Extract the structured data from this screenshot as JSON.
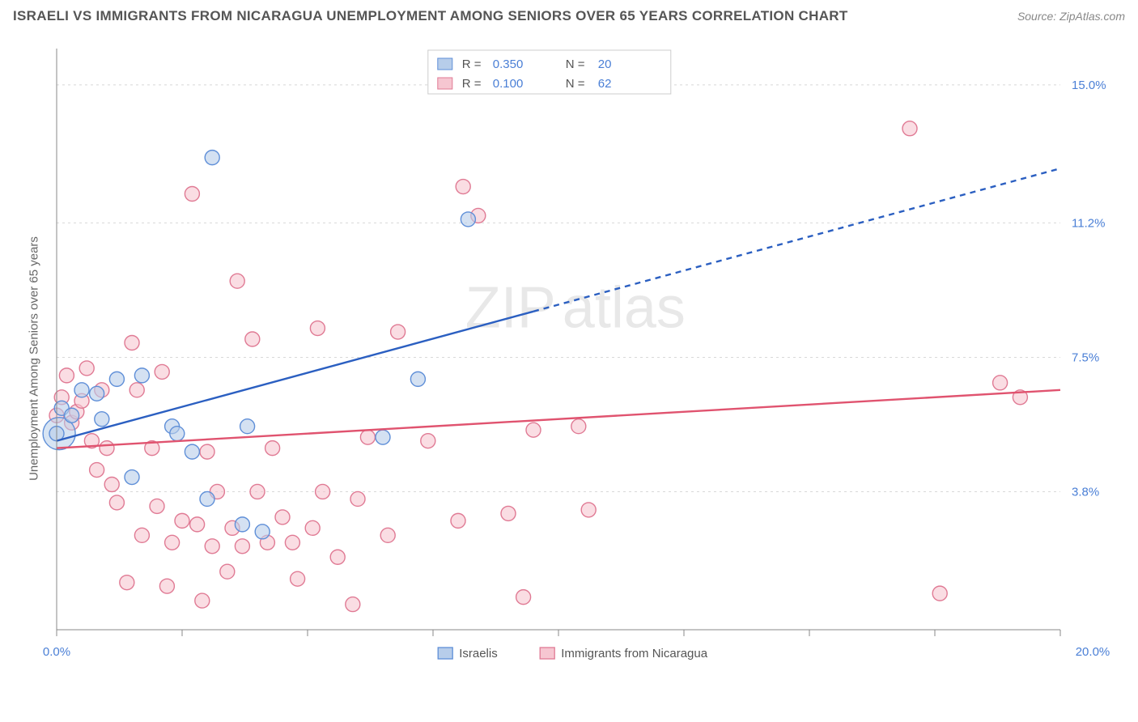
{
  "title": "ISRAELI VS IMMIGRANTS FROM NICARAGUA UNEMPLOYMENT AMONG SENIORS OVER 65 YEARS CORRELATION CHART",
  "source": "Source: ZipAtlas.com",
  "ylabel": "Unemployment Among Seniors over 65 years",
  "watermark_a": "ZIP",
  "watermark_b": "atlas",
  "chart": {
    "type": "scatter",
    "background_color": "#ffffff",
    "grid_color": "#d8d8d8",
    "axis_color": "#888888",
    "xlim": [
      0,
      20
    ],
    "ylim": [
      0,
      16
    ],
    "x_tick_positions": [
      0,
      2.5,
      5,
      7.5,
      10,
      12.5,
      15,
      17.5,
      20
    ],
    "x_tick_labels_shown": {
      "0": "0.0%",
      "20": "20.0%"
    },
    "y_grid_positions": [
      3.8,
      7.5,
      11.2,
      15.0
    ],
    "y_tick_labels": [
      "3.8%",
      "7.5%",
      "11.2%",
      "15.0%"
    ],
    "marker_radius": 9,
    "marker_stroke_width": 1.4,
    "line_width": 2.4,
    "series": [
      {
        "name": "Israelis",
        "fill": "#b7cdea",
        "stroke": "#5f8fd8",
        "line_color": "#2b5fc1",
        "dash": "none_then_dash",
        "R": "0.350",
        "N": "20",
        "trend": {
          "x1": 0,
          "y1": 5.2,
          "x2": 20,
          "y2": 12.7,
          "solid_until_x": 9.5
        },
        "points": [
          [
            0.0,
            5.4
          ],
          [
            0.1,
            6.1
          ],
          [
            0.3,
            5.9
          ],
          [
            0.5,
            6.6
          ],
          [
            0.8,
            6.5
          ],
          [
            0.9,
            5.8
          ],
          [
            1.2,
            6.9
          ],
          [
            1.5,
            4.2
          ],
          [
            1.7,
            7.0
          ],
          [
            2.3,
            5.6
          ],
          [
            2.4,
            5.4
          ],
          [
            2.7,
            4.9
          ],
          [
            3.0,
            3.6
          ],
          [
            3.1,
            13.0
          ],
          [
            3.7,
            2.9
          ],
          [
            3.8,
            5.6
          ],
          [
            4.1,
            2.7
          ],
          [
            6.5,
            5.3
          ],
          [
            7.2,
            6.9
          ],
          [
            8.2,
            11.3
          ]
        ],
        "big_point": {
          "x": 0.05,
          "y": 5.4,
          "r": 20
        }
      },
      {
        "name": "Immigrants from Nicaragua",
        "fill": "#f6c6d1",
        "stroke": "#e07a94",
        "line_color": "#e0536f",
        "dash": "none",
        "R": "0.100",
        "N": "62",
        "trend": {
          "x1": 0,
          "y1": 5.0,
          "x2": 20,
          "y2": 6.6
        },
        "points": [
          [
            0.0,
            5.9
          ],
          [
            0.1,
            6.4
          ],
          [
            0.2,
            7.0
          ],
          [
            0.3,
            5.7
          ],
          [
            0.4,
            6.0
          ],
          [
            0.5,
            6.3
          ],
          [
            0.6,
            7.2
          ],
          [
            0.7,
            5.2
          ],
          [
            0.8,
            4.4
          ],
          [
            0.9,
            6.6
          ],
          [
            1.0,
            5.0
          ],
          [
            1.1,
            4.0
          ],
          [
            1.2,
            3.5
          ],
          [
            1.4,
            1.3
          ],
          [
            1.5,
            7.9
          ],
          [
            1.6,
            6.6
          ],
          [
            1.7,
            2.6
          ],
          [
            1.9,
            5.0
          ],
          [
            2.0,
            3.4
          ],
          [
            2.1,
            7.1
          ],
          [
            2.2,
            1.2
          ],
          [
            2.3,
            2.4
          ],
          [
            2.5,
            3.0
          ],
          [
            2.7,
            12.0
          ],
          [
            2.8,
            2.9
          ],
          [
            2.9,
            0.8
          ],
          [
            3.0,
            4.9
          ],
          [
            3.1,
            2.3
          ],
          [
            3.2,
            3.8
          ],
          [
            3.4,
            1.6
          ],
          [
            3.5,
            2.8
          ],
          [
            3.6,
            9.6
          ],
          [
            3.7,
            2.3
          ],
          [
            3.9,
            8.0
          ],
          [
            4.0,
            3.8
          ],
          [
            4.2,
            2.4
          ],
          [
            4.3,
            5.0
          ],
          [
            4.5,
            3.1
          ],
          [
            4.7,
            2.4
          ],
          [
            4.8,
            1.4
          ],
          [
            5.1,
            2.8
          ],
          [
            5.2,
            8.3
          ],
          [
            5.3,
            3.8
          ],
          [
            5.6,
            2.0
          ],
          [
            5.9,
            0.7
          ],
          [
            6.0,
            3.6
          ],
          [
            6.2,
            5.3
          ],
          [
            6.6,
            2.6
          ],
          [
            6.8,
            8.2
          ],
          [
            7.4,
            5.2
          ],
          [
            8.0,
            3.0
          ],
          [
            8.1,
            12.2
          ],
          [
            8.4,
            11.4
          ],
          [
            9.0,
            3.2
          ],
          [
            9.3,
            0.9
          ],
          [
            9.5,
            5.5
          ],
          [
            10.4,
            5.6
          ],
          [
            10.6,
            3.3
          ],
          [
            17.0,
            13.8
          ],
          [
            17.6,
            1.0
          ],
          [
            18.8,
            6.8
          ],
          [
            19.2,
            6.4
          ]
        ]
      }
    ]
  },
  "legend_top": {
    "R_label": "R =",
    "N_label": "N ="
  },
  "legend_bottom": {
    "series1": "Israelis",
    "series2": "Immigrants from Nicaragua"
  }
}
